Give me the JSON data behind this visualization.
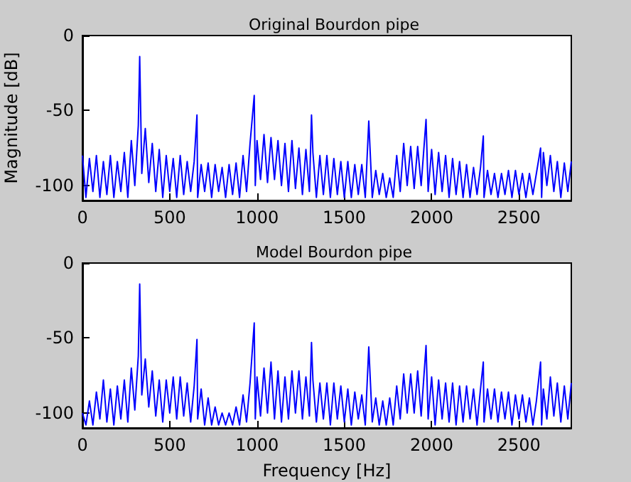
{
  "chart_data": [
    {
      "type": "line",
      "title": "Original Bourdon pipe",
      "ylabel": "Magnitude [dB]",
      "xlim": [
        0,
        2800
      ],
      "xticks": [
        0,
        500,
        1000,
        1500,
        2000,
        2500
      ],
      "ylim": [
        -110,
        0
      ],
      "yticks": [
        -100,
        -50,
        0
      ],
      "series": [
        {
          "color": "#0000ff",
          "x": [
            0,
            20,
            40,
            60,
            80,
            100,
            120,
            140,
            160,
            180,
            200,
            220,
            240,
            260,
            280,
            300,
            320,
            328,
            340,
            360,
            380,
            400,
            420,
            440,
            460,
            480,
            500,
            520,
            540,
            560,
            580,
            600,
            620,
            640,
            656,
            660,
            680,
            700,
            720,
            740,
            760,
            780,
            800,
            820,
            840,
            860,
            880,
            900,
            920,
            940,
            960,
            984,
            990,
            1000,
            1020,
            1040,
            1060,
            1080,
            1100,
            1120,
            1140,
            1160,
            1180,
            1200,
            1220,
            1240,
            1260,
            1280,
            1300,
            1312,
            1320,
            1340,
            1360,
            1380,
            1400,
            1420,
            1440,
            1460,
            1480,
            1500,
            1520,
            1540,
            1560,
            1580,
            1600,
            1620,
            1640,
            1660,
            1680,
            1700,
            1720,
            1740,
            1760,
            1780,
            1800,
            1820,
            1840,
            1860,
            1880,
            1900,
            1920,
            1940,
            1968,
            1980,
            2000,
            2020,
            2040,
            2060,
            2080,
            2100,
            2120,
            2140,
            2160,
            2180,
            2200,
            2220,
            2240,
            2260,
            2280,
            2296,
            2300,
            2320,
            2340,
            2360,
            2380,
            2400,
            2420,
            2440,
            2460,
            2480,
            2500,
            2520,
            2540,
            2560,
            2580,
            2600,
            2624,
            2630,
            2640,
            2660,
            2680,
            2700,
            2720,
            2740,
            2760,
            2780,
            2800
          ],
          "values": [
            -80,
            -108,
            -82,
            -104,
            -80,
            -108,
            -84,
            -106,
            -80,
            -108,
            -84,
            -104,
            -78,
            -108,
            -70,
            -100,
            -60,
            -14,
            -92,
            -62,
            -98,
            -72,
            -104,
            -76,
            -108,
            -80,
            -104,
            -82,
            -108,
            -80,
            -106,
            -84,
            -104,
            -84,
            -53,
            -108,
            -86,
            -104,
            -85,
            -108,
            -86,
            -104,
            -88,
            -108,
            -86,
            -106,
            -85,
            -108,
            -80,
            -104,
            -72,
            -40,
            -100,
            -70,
            -96,
            -66,
            -98,
            -68,
            -96,
            -70,
            -100,
            -72,
            -104,
            -70,
            -102,
            -75,
            -106,
            -76,
            -104,
            -53,
            -78,
            -108,
            -80,
            -106,
            -80,
            -108,
            -82,
            -106,
            -84,
            -108,
            -84,
            -108,
            -86,
            -106,
            -86,
            -108,
            -57,
            -108,
            -90,
            -106,
            -92,
            -108,
            -95,
            -108,
            -80,
            -104,
            -72,
            -100,
            -74,
            -102,
            -74,
            -100,
            -56,
            -104,
            -76,
            -106,
            -78,
            -104,
            -80,
            -108,
            -82,
            -106,
            -84,
            -108,
            -86,
            -108,
            -88,
            -106,
            -88,
            -67,
            -108,
            -90,
            -106,
            -92,
            -108,
            -92,
            -106,
            -90,
            -108,
            -90,
            -106,
            -92,
            -108,
            -92,
            -106,
            -92,
            -75,
            -108,
            -78,
            -100,
            -80,
            -104,
            -84,
            -108,
            -85,
            -104,
            -84
          ]
        }
      ]
    },
    {
      "type": "line",
      "title": "Model Bourdon pipe",
      "xlabel": "Frequency [Hz]",
      "xlim": [
        0,
        2800
      ],
      "xticks": [
        0,
        500,
        1000,
        1500,
        2000,
        2500
      ],
      "ylim": [
        -110,
        0
      ],
      "yticks": [
        -100,
        -50,
        0
      ],
      "series": [
        {
          "color": "#0000ff",
          "x": [
            0,
            20,
            40,
            60,
            80,
            100,
            120,
            140,
            160,
            180,
            200,
            220,
            240,
            260,
            280,
            300,
            320,
            328,
            340,
            360,
            380,
            400,
            420,
            440,
            460,
            480,
            500,
            520,
            540,
            560,
            580,
            600,
            620,
            640,
            656,
            660,
            680,
            700,
            720,
            740,
            760,
            780,
            800,
            820,
            840,
            860,
            880,
            900,
            920,
            940,
            960,
            984,
            990,
            1000,
            1020,
            1040,
            1060,
            1080,
            1100,
            1120,
            1140,
            1160,
            1180,
            1200,
            1220,
            1240,
            1260,
            1280,
            1300,
            1312,
            1320,
            1340,
            1360,
            1380,
            1400,
            1420,
            1440,
            1460,
            1480,
            1500,
            1520,
            1540,
            1560,
            1580,
            1600,
            1620,
            1640,
            1660,
            1680,
            1700,
            1720,
            1740,
            1760,
            1780,
            1800,
            1820,
            1840,
            1860,
            1880,
            1900,
            1920,
            1940,
            1968,
            1980,
            2000,
            2020,
            2040,
            2060,
            2080,
            2100,
            2120,
            2140,
            2160,
            2180,
            2200,
            2220,
            2240,
            2260,
            2280,
            2296,
            2300,
            2320,
            2340,
            2360,
            2380,
            2400,
            2420,
            2440,
            2460,
            2480,
            2500,
            2520,
            2540,
            2560,
            2580,
            2600,
            2624,
            2630,
            2640,
            2660,
            2680,
            2700,
            2720,
            2740,
            2760,
            2780,
            2800
          ],
          "values": [
            -100,
            -108,
            -92,
            -108,
            -86,
            -104,
            -78,
            -106,
            -84,
            -108,
            -82,
            -104,
            -78,
            -106,
            -70,
            -98,
            -62,
            -14,
            -88,
            -64,
            -96,
            -72,
            -102,
            -78,
            -106,
            -78,
            -100,
            -76,
            -104,
            -76,
            -102,
            -80,
            -106,
            -82,
            -51,
            -104,
            -84,
            -108,
            -90,
            -108,
            -96,
            -108,
            -100,
            -108,
            -100,
            -108,
            -96,
            -108,
            -88,
            -106,
            -80,
            -40,
            -104,
            -76,
            -102,
            -70,
            -100,
            -66,
            -104,
            -72,
            -106,
            -76,
            -104,
            -72,
            -100,
            -72,
            -104,
            -76,
            -102,
            -53,
            -78,
            -106,
            -80,
            -104,
            -80,
            -108,
            -80,
            -104,
            -82,
            -106,
            -84,
            -108,
            -86,
            -104,
            -88,
            -108,
            -56,
            -106,
            -90,
            -108,
            -92,
            -108,
            -90,
            -108,
            -82,
            -104,
            -74,
            -100,
            -74,
            -100,
            -72,
            -102,
            -55,
            -104,
            -76,
            -108,
            -78,
            -104,
            -80,
            -106,
            -80,
            -108,
            -82,
            -106,
            -82,
            -104,
            -84,
            -108,
            -84,
            -66,
            -106,
            -84,
            -104,
            -84,
            -106,
            -86,
            -104,
            -86,
            -108,
            -88,
            -104,
            -88,
            -106,
            -90,
            -108,
            -92,
            -66,
            -108,
            -84,
            -104,
            -76,
            -102,
            -80,
            -106,
            -82,
            -104,
            -80
          ]
        }
      ]
    }
  ]
}
